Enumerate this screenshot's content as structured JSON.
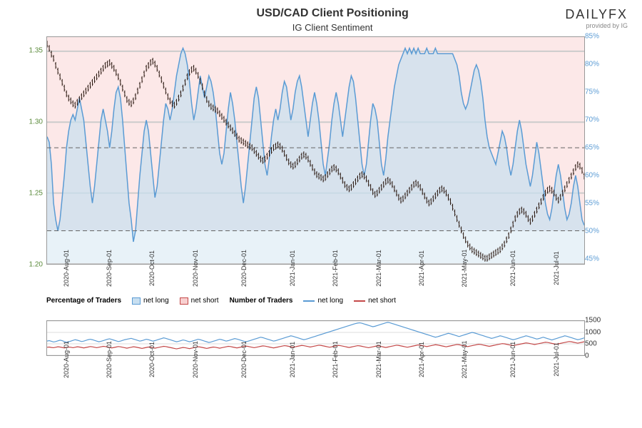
{
  "title": "USD/CAD Client Positioning",
  "subtitle": "IG Client Sentiment",
  "logo": {
    "main": "DAILYFX",
    "sub": "provided by IG"
  },
  "main_chart": {
    "background_upper": "#fce8e8",
    "background_lower": "#e8f2f8",
    "left_axis": {
      "min": 1.2,
      "max": 1.36,
      "ticks": [
        1.2,
        1.25,
        1.3,
        1.35
      ],
      "color": "#5a8a3a"
    },
    "right_axis": {
      "min": 44,
      "max": 85,
      "ticks": [
        45,
        50,
        55,
        60,
        65,
        70,
        75,
        80,
        85
      ],
      "color": "#5a9bd4"
    },
    "divider_50": 50,
    "divider_65": 65,
    "price_color": "#2a1810",
    "sentiment_color": "#5a9bd4",
    "sentiment_fill": "#c8dff0",
    "price_data": [
      1.355,
      1.352,
      1.348,
      1.345,
      1.34,
      1.336,
      1.332,
      1.328,
      1.324,
      1.32,
      1.317,
      1.315,
      1.313,
      1.312,
      1.314,
      1.316,
      1.318,
      1.32,
      1.322,
      1.324,
      1.326,
      1.328,
      1.33,
      1.332,
      1.334,
      1.336,
      1.338,
      1.34,
      1.341,
      1.342,
      1.34,
      1.338,
      1.335,
      1.332,
      1.328,
      1.324,
      1.32,
      1.316,
      1.314,
      1.313,
      1.315,
      1.318,
      1.322,
      1.326,
      1.33,
      1.334,
      1.338,
      1.34,
      1.342,
      1.343,
      1.341,
      1.338,
      1.334,
      1.33,
      1.326,
      1.322,
      1.318,
      1.315,
      1.313,
      1.312,
      1.314,
      1.317,
      1.32,
      1.324,
      1.328,
      1.332,
      1.335,
      1.337,
      1.338,
      1.336,
      1.333,
      1.329,
      1.325,
      1.32,
      1.316,
      1.313,
      1.311,
      1.31,
      1.309,
      1.308,
      1.306,
      1.304,
      1.302,
      1.3,
      1.298,
      1.296,
      1.294,
      1.292,
      1.29,
      1.288,
      1.287,
      1.286,
      1.285,
      1.284,
      1.283,
      1.282,
      1.28,
      1.278,
      1.276,
      1.274,
      1.273,
      1.274,
      1.276,
      1.278,
      1.28,
      1.282,
      1.283,
      1.284,
      1.283,
      1.281,
      1.278,
      1.275,
      1.272,
      1.27,
      1.269,
      1.27,
      1.272,
      1.274,
      1.276,
      1.277,
      1.276,
      1.274,
      1.271,
      1.268,
      1.265,
      1.263,
      1.262,
      1.261,
      1.26,
      1.261,
      1.263,
      1.265,
      1.267,
      1.268,
      1.267,
      1.265,
      1.262,
      1.259,
      1.256,
      1.254,
      1.253,
      1.254,
      1.256,
      1.258,
      1.26,
      1.262,
      1.263,
      1.262,
      1.26,
      1.257,
      1.254,
      1.251,
      1.249,
      1.25,
      1.252,
      1.254,
      1.256,
      1.258,
      1.259,
      1.258,
      1.256,
      1.253,
      1.25,
      1.247,
      1.245,
      1.246,
      1.248,
      1.25,
      1.252,
      1.254,
      1.256,
      1.257,
      1.256,
      1.254,
      1.251,
      1.248,
      1.245,
      1.243,
      1.244,
      1.246,
      1.248,
      1.25,
      1.252,
      1.253,
      1.252,
      1.25,
      1.247,
      1.244,
      1.24,
      1.236,
      1.232,
      1.228,
      1.224,
      1.22,
      1.217,
      1.214,
      1.212,
      1.21,
      1.209,
      1.208,
      1.207,
      1.206,
      1.205,
      1.204,
      1.204,
      1.205,
      1.206,
      1.207,
      1.208,
      1.209,
      1.21,
      1.212,
      1.214,
      1.217,
      1.22,
      1.224,
      1.228,
      1.232,
      1.235,
      1.237,
      1.238,
      1.237,
      1.235,
      1.232,
      1.23,
      1.232,
      1.235,
      1.238,
      1.241,
      1.244,
      1.247,
      1.25,
      1.252,
      1.253,
      1.252,
      1.25,
      1.247,
      1.245,
      1.247,
      1.25,
      1.253,
      1.256,
      1.259,
      1.262,
      1.265,
      1.268,
      1.27,
      1.269,
      1.266,
      1.262
    ],
    "sentiment_data": [
      67,
      66,
      62,
      55,
      52,
      50,
      52,
      56,
      60,
      65,
      68,
      70,
      71,
      70,
      72,
      74,
      72,
      70,
      66,
      62,
      58,
      55,
      58,
      62,
      66,
      70,
      72,
      70,
      68,
      65,
      68,
      72,
      75,
      76,
      74,
      70,
      65,
      60,
      55,
      52,
      48,
      50,
      55,
      60,
      64,
      68,
      70,
      68,
      64,
      60,
      56,
      58,
      62,
      66,
      70,
      73,
      72,
      70,
      72,
      75,
      78,
      80,
      82,
      83,
      82,
      80,
      77,
      73,
      70,
      72,
      75,
      78,
      76,
      74,
      76,
      78,
      77,
      75,
      72,
      68,
      64,
      62,
      64,
      68,
      72,
      75,
      73,
      70,
      66,
      62,
      58,
      55,
      58,
      62,
      66,
      70,
      74,
      76,
      74,
      70,
      66,
      62,
      60,
      63,
      67,
      70,
      72,
      70,
      72,
      75,
      77,
      76,
      73,
      70,
      72,
      75,
      77,
      78,
      76,
      73,
      70,
      67,
      70,
      73,
      75,
      73,
      70,
      66,
      62,
      60,
      63,
      66,
      70,
      73,
      75,
      73,
      70,
      67,
      70,
      73,
      76,
      78,
      77,
      74,
      70,
      66,
      62,
      60,
      62,
      66,
      70,
      73,
      72,
      70,
      66,
      62,
      60,
      63,
      67,
      70,
      73,
      76,
      78,
      80,
      81,
      82,
      83,
      82,
      83,
      82,
      83,
      82,
      83,
      82,
      82,
      82,
      83,
      82,
      82,
      82,
      83,
      82,
      82,
      82,
      82,
      82,
      82,
      82,
      82,
      81,
      80,
      78,
      75,
      73,
      72,
      73,
      75,
      77,
      79,
      80,
      79,
      77,
      74,
      70,
      67,
      65,
      64,
      63,
      62,
      64,
      66,
      68,
      67,
      65,
      62,
      60,
      62,
      65,
      68,
      70,
      68,
      65,
      62,
      60,
      58,
      60,
      63,
      66,
      64,
      61,
      58,
      55,
      53,
      52,
      54,
      57,
      60,
      62,
      60,
      57,
      54,
      52,
      53,
      55,
      58,
      60,
      58,
      55,
      52,
      51
    ]
  },
  "x_axis": {
    "labels": [
      "2020-Aug-01",
      "2020-Sep-01",
      "2020-Oct-01",
      "2020-Nov-01",
      "2020-Dec-01",
      "2021-Jan-01",
      "2021-Feb-01",
      "2021-Mar-01",
      "2021-Apr-01",
      "2021-May-01",
      "2021-Jun-01",
      "2021-Jul-01"
    ],
    "positions": [
      3,
      11,
      19,
      27,
      36,
      45,
      53,
      61,
      69,
      77,
      86,
      94
    ]
  },
  "legend": {
    "pct_label": "Percentage of Traders",
    "num_label": "Number of Traders",
    "net_long": "net long",
    "net_short": "net short",
    "long_color": "#5a9bd4",
    "short_color": "#c44848"
  },
  "sub_chart": {
    "right_axis": {
      "min": 0,
      "max": 1500,
      "ticks": [
        0,
        500,
        1000,
        1500
      ]
    },
    "long_color": "#5a9bd4",
    "short_color": "#c44848",
    "long_data": [
      620,
      640,
      610,
      580,
      600,
      630,
      660,
      640,
      600,
      570,
      590,
      620,
      650,
      680,
      660,
      630,
      600,
      620,
      650,
      680,
      700,
      680,
      650,
      620,
      590,
      610,
      640,
      670,
      700,
      720,
      690,
      660,
      630,
      600,
      620,
      650,
      680,
      700,
      720,
      740,
      710,
      680,
      650,
      620,
      640,
      670,
      700,
      680,
      650,
      620,
      640,
      670,
      700,
      730,
      760,
      740,
      710,
      680,
      650,
      620,
      590,
      610,
      640,
      670,
      650,
      620,
      590,
      610,
      640,
      670,
      700,
      680,
      650,
      620,
      590,
      560,
      580,
      610,
      640,
      670,
      700,
      680,
      650,
      620,
      640,
      670,
      700,
      730,
      710,
      680,
      650,
      620,
      590,
      610,
      640,
      670,
      700,
      730,
      760,
      790,
      770,
      740,
      710,
      680,
      650,
      620,
      640,
      670,
      700,
      730,
      760,
      790,
      820,
      850,
      830,
      800,
      770,
      740,
      710,
      680,
      700,
      730,
      760,
      790,
      820,
      850,
      880,
      910,
      940,
      970,
      1000,
      1030,
      1060,
      1090,
      1120,
      1150,
      1180,
      1210,
      1240,
      1270,
      1300,
      1330,
      1360,
      1390,
      1410,
      1420,
      1400,
      1370,
      1340,
      1310,
      1280,
      1250,
      1270,
      1300,
      1330,
      1360,
      1390,
      1420,
      1440,
      1420,
      1390,
      1360,
      1330,
      1300,
      1270,
      1240,
      1210,
      1180,
      1150,
      1120,
      1090,
      1060,
      1030,
      1000,
      970,
      940,
      910,
      880,
      850,
      820,
      790,
      810,
      840,
      870,
      900,
      930,
      960,
      940,
      910,
      880,
      850,
      820,
      850,
      880,
      910,
      940,
      970,
      1000,
      980,
      950,
      920,
      890,
      860,
      830,
      800,
      770,
      740,
      760,
      790,
      820,
      850,
      830,
      800,
      770,
      740,
      710,
      680,
      700,
      730,
      760,
      790,
      820,
      850,
      830,
      800,
      770,
      740,
      710,
      730,
      760,
      790,
      760,
      730,
      700,
      670,
      700,
      730,
      760,
      790,
      820,
      850,
      830,
      800,
      770,
      740,
      710,
      680,
      700,
      730,
      760
    ],
    "short_data": [
      350,
      360,
      340,
      330,
      350,
      370,
      360,
      340,
      320,
      340,
      360,
      350,
      330,
      350,
      370,
      360,
      340,
      320,
      340,
      360,
      380,
      370,
      350,
      330,
      350,
      370,
      390,
      380,
      360,
      340,
      320,
      340,
      360,
      380,
      370,
      350,
      330,
      310,
      330,
      350,
      370,
      360,
      340,
      320,
      300,
      320,
      340,
      360,
      350,
      330,
      310,
      330,
      350,
      370,
      390,
      380,
      360,
      340,
      320,
      300,
      280,
      300,
      320,
      340,
      330,
      310,
      290,
      310,
      330,
      350,
      370,
      360,
      340,
      320,
      300,
      320,
      340,
      360,
      350,
      330,
      310,
      330,
      350,
      370,
      390,
      380,
      360,
      340,
      320,
      340,
      360,
      380,
      400,
      390,
      370,
      350,
      330,
      350,
      370,
      390,
      410,
      400,
      380,
      360,
      340,
      320,
      340,
      360,
      380,
      400,
      420,
      410,
      390,
      370,
      350,
      370,
      390,
      410,
      430,
      420,
      400,
      380,
      360,
      380,
      400,
      420,
      440,
      430,
      410,
      390,
      370,
      350,
      370,
      390,
      410,
      430,
      420,
      400,
      380,
      360,
      340,
      360,
      380,
      400,
      420,
      410,
      390,
      370,
      350,
      330,
      350,
      370,
      390,
      410,
      400,
      380,
      360,
      340,
      360,
      380,
      400,
      420,
      440,
      430,
      410,
      390,
      370,
      350,
      370,
      390,
      410,
      430,
      450,
      440,
      420,
      400,
      380,
      400,
      420,
      440,
      460,
      450,
      430,
      410,
      390,
      370,
      390,
      410,
      430,
      450,
      470,
      460,
      440,
      420,
      400,
      380,
      400,
      420,
      440,
      460,
      480,
      470,
      450,
      430,
      410,
      390,
      410,
      430,
      450,
      470,
      490,
      510,
      500,
      480,
      460,
      440,
      420,
      440,
      460,
      480,
      500,
      520,
      540,
      530,
      510,
      490,
      470,
      490,
      510,
      530,
      550,
      570,
      560,
      540,
      520,
      500,
      480,
      500,
      520,
      540,
      560,
      580,
      600,
      590,
      570,
      550,
      530,
      550,
      570,
      590
    ]
  }
}
